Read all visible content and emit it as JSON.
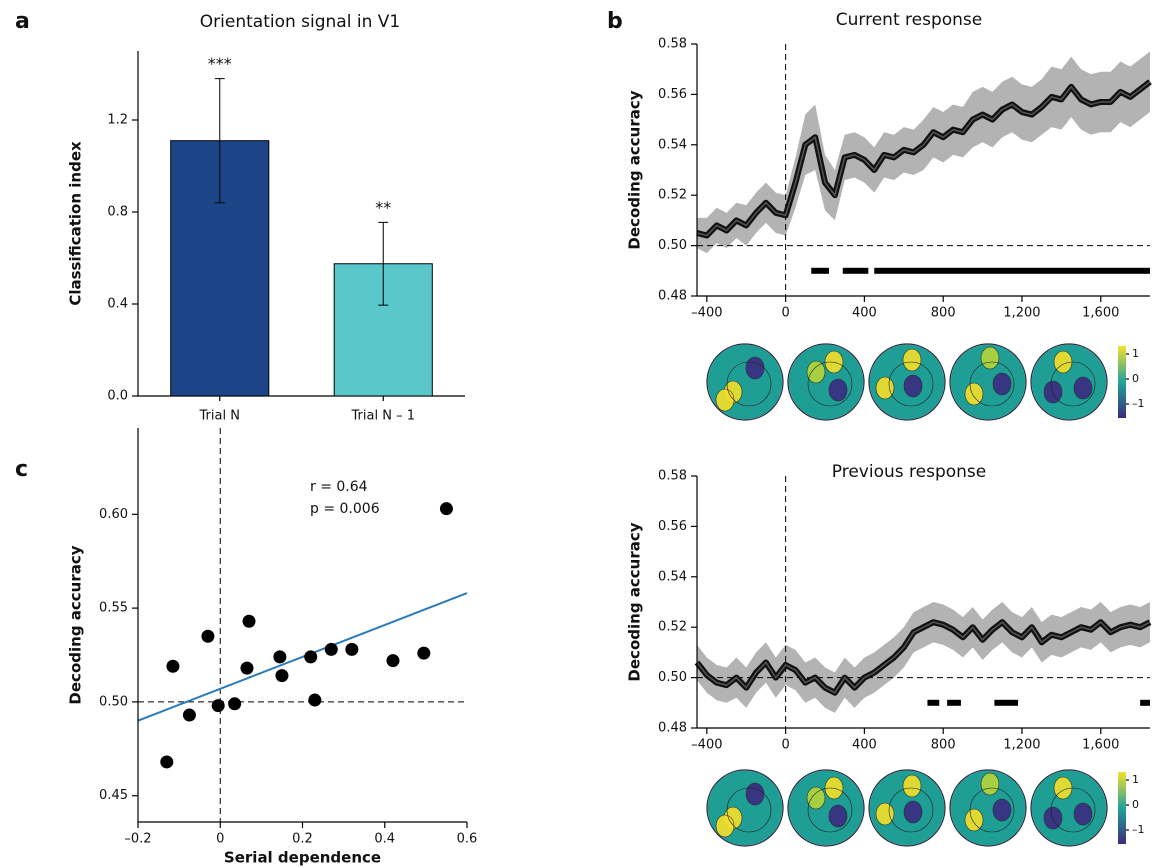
{
  "chart_data": [
    {
      "type": "bar",
      "panel": "a",
      "title": "Orientation signal in V1",
      "y_label": "Classification index",
      "categories": [
        "Trial N",
        "Trial N – 1"
      ],
      "values": [
        1.11,
        0.575
      ],
      "errors": [
        0.27,
        0.18
      ],
      "annotations": [
        "***",
        "**"
      ],
      "colors": [
        "#1b4587",
        "#5ac7cb"
      ],
      "ylim": [
        0,
        1.5
      ],
      "yticks": [
        {
          "value": 0,
          "label": "0.0"
        },
        0.4,
        0.8,
        1.2
      ]
    },
    {
      "type": "line",
      "panel": "b",
      "title": "Current response",
      "y_label": "Decoding accuracy",
      "x": [
        -450,
        -400,
        -350,
        -300,
        -250,
        -200,
        -150,
        -100,
        -50,
        0,
        50,
        100,
        150,
        200,
        250,
        300,
        350,
        400,
        450,
        500,
        550,
        600,
        650,
        700,
        750,
        800,
        850,
        900,
        950,
        1000,
        1050,
        1100,
        1150,
        1200,
        1250,
        1300,
        1350,
        1400,
        1450,
        1500,
        1550,
        1600,
        1650,
        1700,
        1750,
        1800,
        1850
      ],
      "series": [
        {
          "color": "#111111",
          "band_color": "#b3b3b3",
          "values": [
            0.505,
            0.504,
            0.508,
            0.506,
            0.51,
            0.508,
            0.513,
            0.517,
            0.513,
            0.512,
            0.525,
            0.54,
            0.543,
            0.525,
            0.52,
            0.535,
            0.536,
            0.534,
            0.53,
            0.536,
            0.535,
            0.538,
            0.537,
            0.54,
            0.545,
            0.543,
            0.546,
            0.545,
            0.55,
            0.552,
            0.55,
            0.554,
            0.556,
            0.553,
            0.552,
            0.555,
            0.559,
            0.558,
            0.563,
            0.558,
            0.556,
            0.557,
            0.557,
            0.561,
            0.559,
            0.562,
            0.565
          ],
          "error": [
            0.006,
            0.007,
            0.007,
            0.007,
            0.007,
            0.008,
            0.008,
            0.008,
            0.008,
            0.008,
            0.01,
            0.012,
            0.013,
            0.011,
            0.01,
            0.009,
            0.009,
            0.009,
            0.009,
            0.009,
            0.009,
            0.009,
            0.009,
            0.01,
            0.01,
            0.01,
            0.01,
            0.01,
            0.011,
            0.011,
            0.011,
            0.011,
            0.011,
            0.011,
            0.011,
            0.011,
            0.012,
            0.012,
            0.012,
            0.012,
            0.012,
            0.012,
            0.012,
            0.012,
            0.012,
            0.012,
            0.012
          ]
        }
      ],
      "significance": [
        [
          130,
          220
        ],
        [
          290,
          420
        ],
        [
          450,
          1850
        ]
      ],
      "significance_y": 0.49,
      "ref_x": 0,
      "ref_y": 0.5,
      "xlim": [
        -450,
        1850
      ],
      "xticks": [
        {
          "value": -400,
          "label": "–400"
        },
        0,
        400,
        800,
        {
          "value": 1200,
          "label": "1,200"
        },
        {
          "value": 1600,
          "label": "1,600"
        }
      ],
      "ylim": [
        0.48,
        0.58
      ],
      "yticks": [
        0.48,
        {
          "value": 0.5,
          "label": "0.50"
        },
        0.52,
        0.54,
        0.56,
        0.58
      ],
      "colorbar_ticks": [
        1,
        0,
        {
          "value": -1,
          "label": "–1"
        }
      ]
    },
    {
      "type": "line",
      "title": "Previous response",
      "y_label": "Decoding accuracy",
      "x": [
        -450,
        -400,
        -350,
        -300,
        -250,
        -200,
        -150,
        -100,
        -50,
        0,
        50,
        100,
        150,
        200,
        250,
        300,
        350,
        400,
        450,
        500,
        550,
        600,
        650,
        700,
        750,
        800,
        850,
        900,
        950,
        1000,
        1050,
        1100,
        1150,
        1200,
        1250,
        1300,
        1350,
        1400,
        1450,
        1500,
        1550,
        1600,
        1650,
        1700,
        1750,
        1800,
        1850
      ],
      "series": [
        {
          "color": "#111111",
          "band_color": "#b3b3b3",
          "values": [
            0.506,
            0.501,
            0.498,
            0.497,
            0.5,
            0.496,
            0.502,
            0.506,
            0.5,
            0.505,
            0.503,
            0.498,
            0.5,
            0.496,
            0.494,
            0.5,
            0.496,
            0.5,
            0.502,
            0.505,
            0.508,
            0.512,
            0.518,
            0.52,
            0.522,
            0.521,
            0.519,
            0.516,
            0.52,
            0.515,
            0.519,
            0.522,
            0.518,
            0.516,
            0.52,
            0.514,
            0.517,
            0.516,
            0.518,
            0.52,
            0.519,
            0.522,
            0.518,
            0.52,
            0.521,
            0.52,
            0.522
          ],
          "error": [
            0.007,
            0.007,
            0.007,
            0.007,
            0.008,
            0.008,
            0.008,
            0.008,
            0.008,
            0.008,
            0.008,
            0.008,
            0.008,
            0.008,
            0.008,
            0.008,
            0.008,
            0.008,
            0.008,
            0.008,
            0.008,
            0.008,
            0.008,
            0.008,
            0.008,
            0.008,
            0.008,
            0.008,
            0.008,
            0.008,
            0.008,
            0.008,
            0.008,
            0.008,
            0.008,
            0.008,
            0.008,
            0.008,
            0.008,
            0.008,
            0.008,
            0.008,
            0.008,
            0.008,
            0.008,
            0.008,
            0.008
          ]
        }
      ],
      "significance": [
        [
          720,
          780
        ],
        [
          820,
          890
        ],
        [
          1060,
          1180
        ],
        [
          1800,
          1850
        ]
      ],
      "significance_y": 0.49,
      "ref_x": 0,
      "ref_y": 0.5,
      "xlim": [
        -450,
        1850
      ],
      "xticks": [
        {
          "value": -400,
          "label": "–400"
        },
        0,
        400,
        800,
        {
          "value": 1200,
          "label": "1,200"
        },
        {
          "value": 1600,
          "label": "1,600"
        }
      ],
      "ylim": [
        0.48,
        0.58
      ],
      "yticks": [
        0.48,
        {
          "value": 0.5,
          "label": "0.50"
        },
        0.52,
        0.54,
        0.56,
        0.58
      ],
      "colorbar_ticks": [
        1,
        0,
        {
          "value": -1,
          "label": "–1"
        }
      ]
    },
    {
      "type": "scatter",
      "panel": "c",
      "x_label": "Serial dependence",
      "y_label": "Decoding accuracy",
      "annotations": [
        "r = 0.64",
        "p = 0.006"
      ],
      "color": "#000000",
      "fit_color": "#2b7bba",
      "x": [
        -0.13,
        -0.115,
        -0.075,
        -0.03,
        -0.005,
        0.035,
        0.065,
        0.07,
        0.145,
        0.15,
        0.22,
        0.23,
        0.27,
        0.32,
        0.42,
        0.495,
        0.55
      ],
      "values": [
        0.468,
        0.519,
        0.493,
        0.535,
        0.498,
        0.499,
        0.518,
        0.543,
        0.524,
        0.514,
        0.524,
        0.501,
        0.528,
        0.528,
        0.522,
        0.526,
        0.603
      ],
      "fit": {
        "x": [
          -0.2,
          0.6
        ],
        "y": [
          0.49,
          0.558
        ]
      },
      "ref_x": 0,
      "ref_y": 0.5,
      "xlim": [
        -0.2,
        0.6
      ],
      "xticks": [
        {
          "value": -0.2,
          "label": "–0.2"
        },
        0,
        0.2,
        0.4,
        0.6
      ],
      "ylim": [
        0.436,
        0.646
      ],
      "yticks": [
        0.45,
        {
          "value": 0.5,
          "label": "0.50"
        },
        0.55,
        {
          "value": 0.6,
          "label": "0.60"
        }
      ]
    }
  ]
}
